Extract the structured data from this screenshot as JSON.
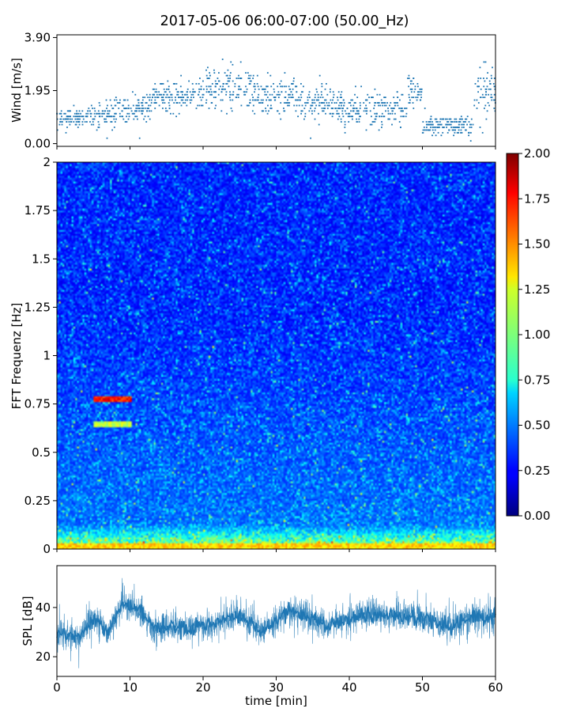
{
  "figure": {
    "title": "2017-05-06 06:00-07:00 (50.00_Hz)"
  },
  "chart_data": [
    {
      "id": "wind",
      "type": "scatter",
      "title": "2017-05-06 06:00-07:00 (50.00_Hz)",
      "xlabel": "",
      "ylabel": "Wind [m/s]",
      "xlim": [
        0,
        60
      ],
      "ylim": [
        -0.1,
        4.0
      ],
      "yticks": [
        0.0,
        1.95,
        3.9
      ],
      "ytick_labels": [
        "0.00",
        "1.95",
        "3.90"
      ],
      "color": "#1f77b4",
      "segments": [
        {
          "t0": 0,
          "t1": 4,
          "mean": 0.95,
          "spread": 0.3
        },
        {
          "t0": 4,
          "t1": 8,
          "mean": 1.05,
          "spread": 0.4
        },
        {
          "t0": 8,
          "t1": 13,
          "mean": 1.35,
          "spread": 0.5
        },
        {
          "t0": 13,
          "t1": 20,
          "mean": 1.75,
          "spread": 0.5
        },
        {
          "t0": 20,
          "t1": 27,
          "mean": 2.05,
          "spread": 0.7
        },
        {
          "t0": 27,
          "t1": 33,
          "mean": 1.8,
          "spread": 0.7
        },
        {
          "t0": 33,
          "t1": 38,
          "mean": 1.5,
          "spread": 0.6
        },
        {
          "t0": 38,
          "t1": 48,
          "mean": 1.25,
          "spread": 0.5
        },
        {
          "t0": 48,
          "t1": 50,
          "mean": 1.9,
          "spread": 0.5
        },
        {
          "t0": 50,
          "t1": 57,
          "mean": 0.65,
          "spread": 0.35
        },
        {
          "t0": 57,
          "t1": 60,
          "mean": 1.9,
          "spread": 0.9
        }
      ]
    },
    {
      "id": "spectrogram",
      "type": "heatmap",
      "xlabel": "",
      "ylabel": "FFT Frequenz [Hz]",
      "xlim": [
        0,
        60
      ],
      "ylim": [
        0,
        2
      ],
      "yticks": [
        0,
        0.25,
        0.5,
        0.75,
        1,
        1.25,
        1.5,
        1.75,
        2
      ],
      "ytick_labels": [
        "0",
        "0.25",
        "0.5",
        "0.75",
        "1",
        "1.25",
        "1.5",
        "1.75",
        "2"
      ],
      "colormap": "jet",
      "clim": [
        0.0,
        2.0
      ],
      "colorbar_ticks": [
        "0.00",
        "0.25",
        "0.50",
        "0.75",
        "1.00",
        "1.25",
        "1.50",
        "1.75",
        "2.00"
      ],
      "features": [
        {
          "t0": 5,
          "t1": 10,
          "f": 0.77,
          "value": 1.8
        },
        {
          "t0": 5,
          "t1": 10,
          "f": 0.64,
          "value": 1.2
        },
        {
          "t0": 0,
          "t1": 60,
          "f": 0.01,
          "value": 1.4
        }
      ]
    },
    {
      "id": "spl",
      "type": "line",
      "xlabel": "time [min]",
      "ylabel": "SPL [dB]",
      "xlim": [
        0,
        60
      ],
      "ylim": [
        12,
        57
      ],
      "yticks": [
        20,
        40
      ],
      "ytick_labels": [
        "20",
        "40"
      ],
      "xticks": [
        0,
        10,
        20,
        30,
        40,
        50,
        60
      ],
      "xtick_labels": [
        "0",
        "10",
        "20",
        "30",
        "40",
        "50",
        "60"
      ],
      "color": "#1f77b4",
      "trend": [
        {
          "t": 0,
          "db": 30
        },
        {
          "t": 3,
          "db": 28
        },
        {
          "t": 5,
          "db": 35
        },
        {
          "t": 7,
          "db": 30
        },
        {
          "t": 9,
          "db": 41
        },
        {
          "t": 11,
          "db": 40
        },
        {
          "t": 13,
          "db": 32
        },
        {
          "t": 20,
          "db": 32
        },
        {
          "t": 25,
          "db": 37
        },
        {
          "t": 28,
          "db": 30
        },
        {
          "t": 32,
          "db": 39
        },
        {
          "t": 37,
          "db": 33
        },
        {
          "t": 42,
          "db": 37
        },
        {
          "t": 50,
          "db": 36
        },
        {
          "t": 54,
          "db": 32
        },
        {
          "t": 57,
          "db": 37
        },
        {
          "t": 60,
          "db": 35
        }
      ]
    }
  ]
}
